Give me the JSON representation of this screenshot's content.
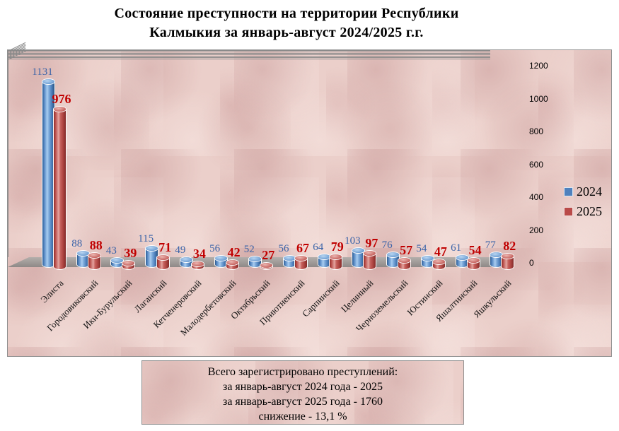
{
  "title": {
    "line1": "Состояние преступности  на территории   Республики",
    "line2": "Калмыкия за январь-август  2024/2025 г.г."
  },
  "chart_data": {
    "type": "bar",
    "style": "3d-cylinder",
    "title": "Состояние преступности на территории Республики Калмыкия за январь-август 2024/2025 г.г.",
    "categories": [
      "Элиста",
      "Городовиковский",
      "Ики-Бурульский",
      "Лаганский",
      "Кетченеровский",
      "Малодербетовский",
      "Октябрьский",
      "Приютненский",
      "Сарпинский",
      "Целинный",
      "Черноземельский",
      "Юстинский",
      "Яшалтинский",
      "Яшкульский"
    ],
    "series": [
      {
        "name": "2024",
        "color": "#4f81bd",
        "label_color": "#3a63a8",
        "values": [
          1131,
          88,
          43,
          115,
          49,
          56,
          52,
          56,
          64,
          103,
          76,
          54,
          61,
          77
        ]
      },
      {
        "name": "2025",
        "color": "#b94a48",
        "label_color": "#c00000",
        "values": [
          976,
          88,
          39,
          71,
          34,
          42,
          27,
          67,
          79,
          97,
          57,
          47,
          54,
          82
        ]
      }
    ],
    "ylim": [
      0,
      1200
    ],
    "yticks": [
      0,
      200,
      400,
      600,
      800,
      1000,
      1200
    ],
    "grid": true,
    "legend_position": "right",
    "value_labels": true,
    "xlabel": "",
    "ylabel": ""
  },
  "summary": {
    "line1": "Всего зарегистрировано преступлений:",
    "line2": "за январь-август 2024  года - 2025",
    "line3": "за январь-август 2025  года - 1760",
    "line4": "снижение - 13,1 %"
  },
  "colors": {
    "background": "#ebcfca",
    "grid": "#8a8a8a",
    "floor_top": "#b3aeab",
    "floor_bottom": "#8e8987",
    "axis_text": "#000000"
  }
}
